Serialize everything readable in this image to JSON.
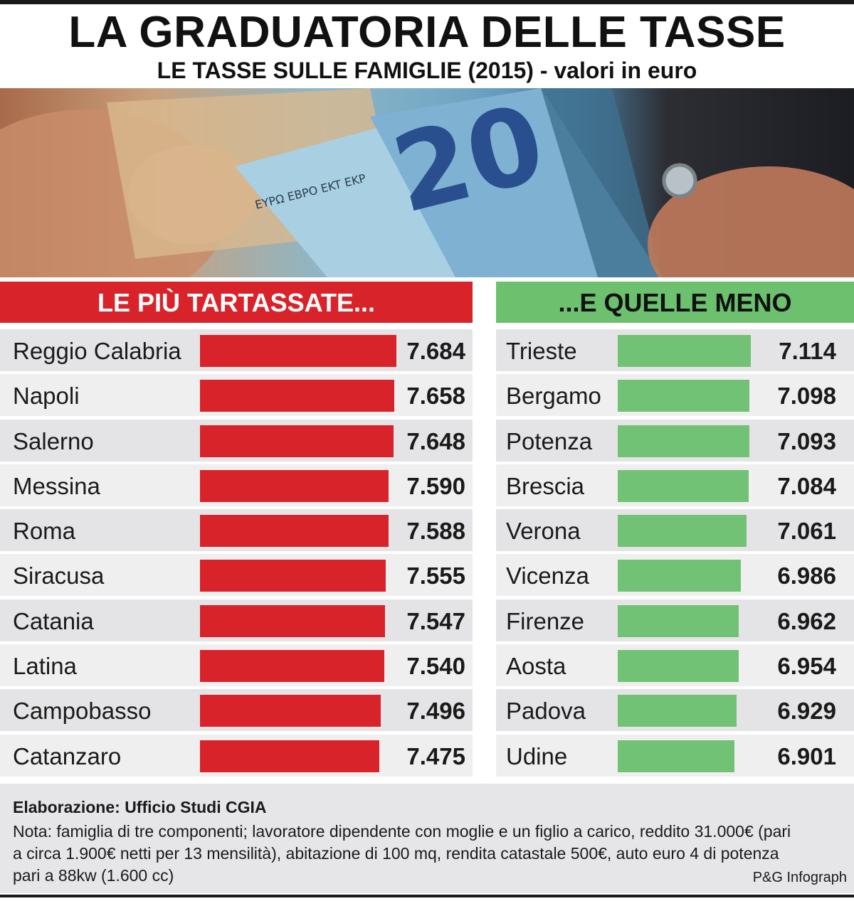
{
  "title": "LA GRADUATORIA DELLE TASSE",
  "subtitle": "LE TASSE SULLE FAMIGLIE (2015) - valori in euro",
  "photo": {
    "banknote_denomination": "20",
    "banknote_text": "ΕΥΡΩ ЕВРО EKT EKP"
  },
  "chart_data": [
    {
      "type": "bar",
      "title": "LE PIÙ TARTASSATE...",
      "color": "#d9232b",
      "categories": [
        "Reggio Calabria",
        "Napoli",
        "Salerno",
        "Messina",
        "Roma",
        "Siracusa",
        "Catania",
        "Latina",
        "Campobasso",
        "Catanzaro"
      ],
      "values": [
        7684,
        7658,
        7648,
        7590,
        7588,
        7555,
        7547,
        7540,
        7496,
        7475
      ],
      "labels": [
        "7.684",
        "7.658",
        "7.648",
        "7.590",
        "7.588",
        "7.555",
        "7.547",
        "7.540",
        "7.496",
        "7.475"
      ]
    },
    {
      "type": "bar",
      "title": "...E QUELLE MENO",
      "color": "#72c276",
      "categories": [
        "Trieste",
        "Bergamo",
        "Potenza",
        "Brescia",
        "Verona",
        "Vicenza",
        "Firenze",
        "Aosta",
        "Padova",
        "Udine"
      ],
      "values": [
        7114,
        7098,
        7093,
        7084,
        7061,
        6986,
        6962,
        6954,
        6929,
        6901
      ],
      "labels": [
        "7.114",
        "7.098",
        "7.093",
        "7.084",
        "7.061",
        "6.986",
        "6.962",
        "6.954",
        "6.929",
        "6.901"
      ]
    }
  ],
  "footer": {
    "source": "Elaborazione: Ufficio Studi CGIA",
    "note": "Nota: famiglia di tre componenti; lavoratore dipendente con moglie e un figlio a carico, reddito 31.000€ (pari a circa 1.900€ netti per 13 mensilità), abitazione di 100 mq, rendita catastale 500€, auto euro 4 di potenza pari a 88kw (1.600 cc)",
    "credit": "P&G Infograph"
  }
}
